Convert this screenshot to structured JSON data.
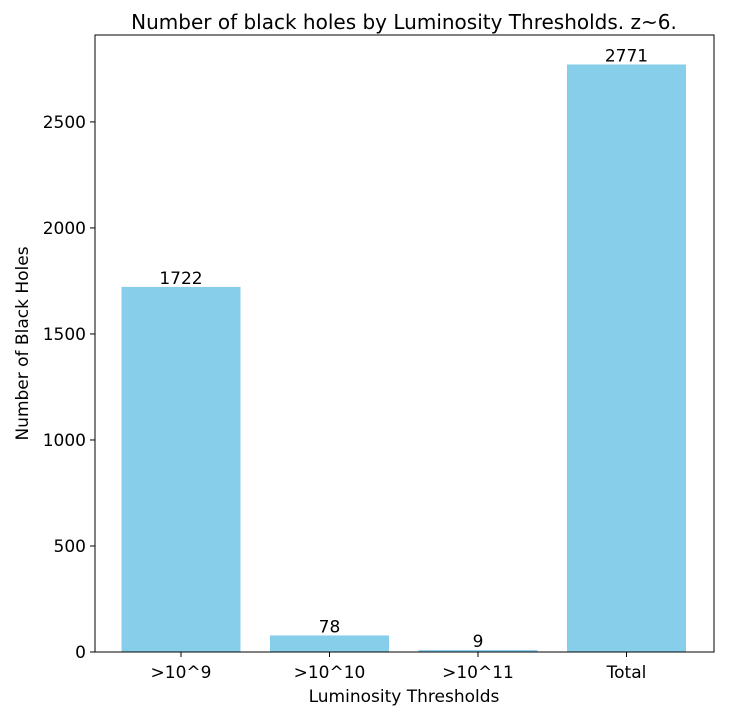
{
  "chart_data": {
    "type": "bar",
    "title": "Number of black holes by Luminosity Thresholds. z~6.",
    "xlabel": "Luminosity Thresholds",
    "ylabel": "Number of Black Holes",
    "categories": [
      ">10^9",
      ">10^10",
      ">10^11",
      "Total"
    ],
    "values": [
      1722,
      78,
      9,
      2771
    ],
    "data_labels": [
      "1722",
      "78",
      "9",
      "2771"
    ],
    "yticks": [
      0,
      500,
      1000,
      1500,
      2000,
      2500
    ],
    "ytick_labels": [
      "0",
      "500",
      "1000",
      "1500",
      "2000",
      "2500"
    ],
    "ylim": [
      0,
      2910
    ],
    "bar_color": "#87ceeb",
    "grid": false,
    "legend": "none"
  }
}
